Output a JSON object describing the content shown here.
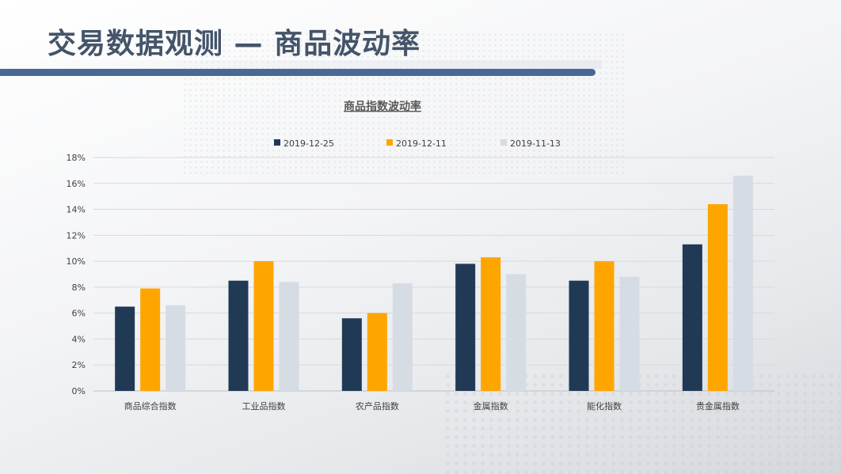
{
  "page": {
    "title": "交易数据观测 — 商品波动率"
  },
  "chart_data": {
    "type": "bar",
    "title": "商品指数波动率",
    "xlabel": "",
    "ylabel": "",
    "categories": [
      "商品综合指数",
      "工业品指数",
      "农产品指数",
      "金属指数",
      "能化指数",
      "贵金属指数"
    ],
    "series": [
      {
        "name": "2019-12-25",
        "color": "#203a56",
        "values": [
          6.5,
          8.5,
          5.6,
          9.8,
          8.5,
          11.3
        ]
      },
      {
        "name": "2019-12-11",
        "color": "#ffa500",
        "values": [
          7.9,
          10.0,
          6.0,
          10.3,
          10.0,
          14.4
        ]
      },
      {
        "name": "2019-11-13",
        "color": "#d6dce4",
        "values": [
          6.6,
          8.4,
          8.3,
          9.0,
          8.8,
          16.6
        ]
      }
    ],
    "ylim": [
      0,
      18
    ],
    "yticks": [
      0,
      2,
      4,
      6,
      8,
      10,
      12,
      14,
      16,
      18
    ],
    "ytick_suffix": "%",
    "grid": true,
    "legend_position": "top"
  }
}
